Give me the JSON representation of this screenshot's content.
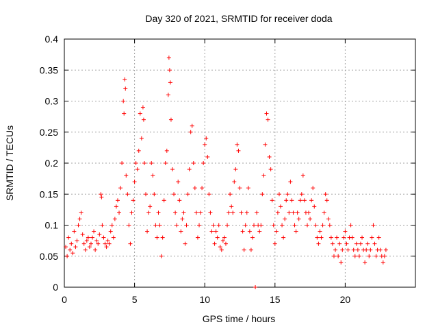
{
  "chart_data": {
    "type": "scatter",
    "title": "Day 320 of 2021, SRMTID for receiver doda",
    "xlabel": "GPS time / hours",
    "ylabel": "SRMTID / TECUs",
    "xlim": [
      0,
      25
    ],
    "ylim": [
      0,
      0.4
    ],
    "x_ticks": [
      0,
      5,
      10,
      15,
      20
    ],
    "x_tick_labels": [
      "0",
      "5",
      "10",
      "15",
      "20"
    ],
    "y_ticks": [
      0,
      0.05,
      0.1,
      0.15,
      0.2,
      0.25,
      0.3,
      0.35,
      0.4
    ],
    "y_tick_labels": [
      "0",
      "0.05",
      "0.1",
      "0.15",
      "0.2",
      "0.25",
      "0.3",
      "0.35",
      "0.4"
    ],
    "grid": true,
    "marker": "plus",
    "color": "#ff0000",
    "series": [
      {
        "name": "SRMTID",
        "points": [
          [
            0.1,
            0.065
          ],
          [
            0.2,
            0.05
          ],
          [
            0.3,
            0.08
          ],
          [
            0.4,
            0.06
          ],
          [
            0.5,
            0.07
          ],
          [
            0.6,
            0.055
          ],
          [
            0.7,
            0.09
          ],
          [
            0.8,
            0.065
          ],
          [
            0.9,
            0.075
          ],
          [
            1.0,
            0.1
          ],
          [
            1.1,
            0.11
          ],
          [
            1.2,
            0.12
          ],
          [
            1.3,
            0.085
          ],
          [
            1.4,
            0.07
          ],
          [
            1.5,
            0.06
          ],
          [
            1.6,
            0.075
          ],
          [
            1.7,
            0.08
          ],
          [
            1.8,
            0.065
          ],
          [
            1.9,
            0.07
          ],
          [
            2.0,
            0.08
          ],
          [
            2.1,
            0.09
          ],
          [
            2.2,
            0.06
          ],
          [
            2.3,
            0.075
          ],
          [
            2.4,
            0.07
          ],
          [
            2.5,
            0.085
          ],
          [
            2.6,
            0.15
          ],
          [
            2.65,
            0.145
          ],
          [
            2.7,
            0.1
          ],
          [
            2.8,
            0.08
          ],
          [
            2.9,
            0.07
          ],
          [
            3.0,
            0.065
          ],
          [
            3.1,
            0.075
          ],
          [
            3.2,
            0.07
          ],
          [
            3.3,
            0.09
          ],
          [
            3.4,
            0.1
          ],
          [
            3.5,
            0.08
          ],
          [
            3.6,
            0.11
          ],
          [
            3.7,
            0.13
          ],
          [
            3.8,
            0.14
          ],
          [
            3.9,
            0.12
          ],
          [
            4.0,
            0.16
          ],
          [
            4.1,
            0.2
          ],
          [
            4.2,
            0.3
          ],
          [
            4.25,
            0.28
          ],
          [
            4.3,
            0.335
          ],
          [
            4.35,
            0.32
          ],
          [
            4.4,
            0.18
          ],
          [
            4.5,
            0.15
          ],
          [
            4.6,
            0.1
          ],
          [
            4.7,
            0.07
          ],
          [
            4.8,
            0.12
          ],
          [
            4.9,
            0.14
          ],
          [
            5.0,
            0.17
          ],
          [
            5.1,
            0.2
          ],
          [
            5.2,
            0.19
          ],
          [
            5.3,
            0.22
          ],
          [
            5.4,
            0.28
          ],
          [
            5.5,
            0.24
          ],
          [
            5.6,
            0.29
          ],
          [
            5.65,
            0.27
          ],
          [
            5.7,
            0.2
          ],
          [
            5.8,
            0.15
          ],
          [
            5.9,
            0.09
          ],
          [
            6.0,
            0.12
          ],
          [
            6.1,
            0.13
          ],
          [
            6.2,
            0.2
          ],
          [
            6.3,
            0.18
          ],
          [
            6.4,
            0.15
          ],
          [
            6.5,
            0.1
          ],
          [
            6.6,
            0.08
          ],
          [
            6.7,
            0.12
          ],
          [
            6.8,
            0.1
          ],
          [
            6.9,
            0.05
          ],
          [
            7.0,
            0.08
          ],
          [
            7.1,
            0.14
          ],
          [
            7.2,
            0.2
          ],
          [
            7.3,
            0.22
          ],
          [
            7.4,
            0.31
          ],
          [
            7.45,
            0.37
          ],
          [
            7.5,
            0.35
          ],
          [
            7.55,
            0.33
          ],
          [
            7.6,
            0.27
          ],
          [
            7.7,
            0.19
          ],
          [
            7.8,
            0.15
          ],
          [
            7.9,
            0.12
          ],
          [
            8.0,
            0.1
          ],
          [
            8.1,
            0.17
          ],
          [
            8.2,
            0.14
          ],
          [
            8.3,
            0.09
          ],
          [
            8.4,
            0.11
          ],
          [
            8.5,
            0.12
          ],
          [
            8.6,
            0.07
          ],
          [
            8.7,
            0.1
          ],
          [
            8.8,
            0.15
          ],
          [
            8.9,
            0.19
          ],
          [
            9.0,
            0.25
          ],
          [
            9.1,
            0.26
          ],
          [
            9.2,
            0.2
          ],
          [
            9.3,
            0.16
          ],
          [
            9.4,
            0.12
          ],
          [
            9.5,
            0.08
          ],
          [
            9.6,
            0.1
          ],
          [
            9.7,
            0.12
          ],
          [
            9.8,
            0.16
          ],
          [
            9.9,
            0.2
          ],
          [
            10.0,
            0.23
          ],
          [
            10.1,
            0.24
          ],
          [
            10.2,
            0.21
          ],
          [
            10.3,
            0.15
          ],
          [
            10.4,
            0.12
          ],
          [
            10.5,
            0.09
          ],
          [
            10.6,
            0.1
          ],
          [
            10.7,
            0.07
          ],
          [
            10.8,
            0.09
          ],
          [
            10.9,
            0.08
          ],
          [
            11.0,
            0.1
          ],
          [
            11.1,
            0.065
          ],
          [
            11.2,
            0.06
          ],
          [
            11.3,
            0.075
          ],
          [
            11.4,
            0.08
          ],
          [
            11.5,
            0.07
          ],
          [
            11.6,
            0.1
          ],
          [
            11.7,
            0.12
          ],
          [
            11.8,
            0.15
          ],
          [
            11.9,
            0.13
          ],
          [
            12.0,
            0.12
          ],
          [
            12.1,
            0.17
          ],
          [
            12.2,
            0.19
          ],
          [
            12.3,
            0.23
          ],
          [
            12.4,
            0.22
          ],
          [
            12.5,
            0.16
          ],
          [
            12.6,
            0.12
          ],
          [
            12.7,
            0.09
          ],
          [
            12.8,
            0.06
          ],
          [
            12.9,
            0.1
          ],
          [
            13.0,
            0.12
          ],
          [
            13.1,
            0.16
          ],
          [
            13.2,
            0.09
          ],
          [
            13.3,
            0.06
          ],
          [
            13.4,
            0.08
          ],
          [
            13.5,
            0.1
          ],
          [
            13.6,
            0.0
          ],
          [
            13.7,
            0.12
          ],
          [
            13.8,
            0.1
          ],
          [
            13.9,
            0.09
          ],
          [
            14.0,
            0.1
          ],
          [
            14.1,
            0.15
          ],
          [
            14.2,
            0.18
          ],
          [
            14.3,
            0.23
          ],
          [
            14.4,
            0.28
          ],
          [
            14.5,
            0.27
          ],
          [
            14.6,
            0.21
          ],
          [
            14.7,
            0.19
          ],
          [
            14.8,
            0.14
          ],
          [
            14.9,
            0.1
          ],
          [
            15.0,
            0.07
          ],
          [
            15.1,
            0.09
          ],
          [
            15.2,
            0.12
          ],
          [
            15.3,
            0.15
          ],
          [
            15.4,
            0.13
          ],
          [
            15.5,
            0.1
          ],
          [
            15.6,
            0.08
          ],
          [
            15.7,
            0.11
          ],
          [
            15.8,
            0.14
          ],
          [
            15.9,
            0.15
          ],
          [
            16.0,
            0.12
          ],
          [
            16.1,
            0.17
          ],
          [
            16.2,
            0.14
          ],
          [
            16.3,
            0.12
          ],
          [
            16.4,
            0.1
          ],
          [
            16.5,
            0.09
          ],
          [
            16.6,
            0.12
          ],
          [
            16.7,
            0.11
          ],
          [
            16.8,
            0.14
          ],
          [
            16.9,
            0.15
          ],
          [
            17.0,
            0.18
          ],
          [
            17.1,
            0.14
          ],
          [
            17.2,
            0.12
          ],
          [
            17.3,
            0.1
          ],
          [
            17.4,
            0.12
          ],
          [
            17.5,
            0.11
          ],
          [
            17.6,
            0.14
          ],
          [
            17.7,
            0.16
          ],
          [
            17.8,
            0.13
          ],
          [
            17.9,
            0.1
          ],
          [
            18.0,
            0.08
          ],
          [
            18.1,
            0.07
          ],
          [
            18.2,
            0.09
          ],
          [
            18.3,
            0.08
          ],
          [
            18.4,
            0.1
          ],
          [
            18.5,
            0.12
          ],
          [
            18.6,
            0.15
          ],
          [
            18.7,
            0.14
          ],
          [
            18.8,
            0.11
          ],
          [
            18.9,
            0.1
          ],
          [
            19.0,
            0.08
          ],
          [
            19.1,
            0.07
          ],
          [
            19.2,
            0.05
          ],
          [
            19.3,
            0.06
          ],
          [
            19.4,
            0.08
          ],
          [
            19.5,
            0.05
          ],
          [
            19.6,
            0.07
          ],
          [
            19.7,
            0.04
          ],
          [
            19.8,
            0.06
          ],
          [
            19.9,
            0.08
          ],
          [
            20.0,
            0.09
          ],
          [
            20.1,
            0.07
          ],
          [
            20.2,
            0.06
          ],
          [
            20.3,
            0.08
          ],
          [
            20.4,
            0.1
          ],
          [
            20.5,
            0.08
          ],
          [
            20.6,
            0.06
          ],
          [
            20.7,
            0.05
          ],
          [
            20.8,
            0.07
          ],
          [
            20.9,
            0.06
          ],
          [
            21.0,
            0.05
          ],
          [
            21.1,
            0.07
          ],
          [
            21.2,
            0.08
          ],
          [
            21.3,
            0.06
          ],
          [
            21.4,
            0.04
          ],
          [
            21.5,
            0.06
          ],
          [
            21.6,
            0.07
          ],
          [
            21.7,
            0.05
          ],
          [
            21.8,
            0.06
          ],
          [
            21.9,
            0.08
          ],
          [
            22.0,
            0.1
          ],
          [
            22.1,
            0.07
          ],
          [
            22.2,
            0.05
          ],
          [
            22.3,
            0.06
          ],
          [
            22.4,
            0.08
          ],
          [
            22.5,
            0.06
          ],
          [
            22.6,
            0.05
          ],
          [
            22.7,
            0.04
          ],
          [
            22.8,
            0.05
          ],
          [
            22.9,
            0.06
          ]
        ]
      }
    ]
  }
}
